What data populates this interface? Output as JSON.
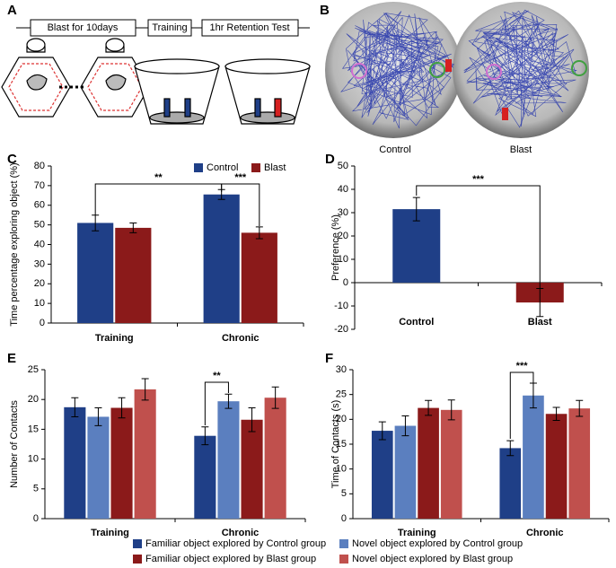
{
  "panel_a": {
    "label": "A",
    "steps": [
      "Blast for 10days",
      "Training",
      "1hr Retention Test"
    ]
  },
  "panel_b": {
    "label": "B",
    "labels": [
      "Control",
      "Blast"
    ]
  },
  "chart_data": [
    {
      "type": "bar",
      "panel_label": "C",
      "ylabel": "Time percentage exploring object (%)",
      "categories": [
        "Training",
        "Chronic"
      ],
      "ylim": [
        0,
        80
      ],
      "yticks": [
        0,
        10,
        20,
        30,
        40,
        50,
        60,
        70,
        80
      ],
      "legend": "upper right",
      "annotations": [
        "**",
        "***"
      ],
      "series": [
        {
          "name": "Control",
          "color": "#1f3f87",
          "values": [
            51,
            65.5
          ],
          "errors": [
            4,
            2.5
          ]
        },
        {
          "name": "Blast",
          "color": "#8b1a1a",
          "values": [
            48.5,
            46
          ],
          "errors": [
            2.5,
            3
          ]
        }
      ]
    },
    {
      "type": "bar",
      "panel_label": "D",
      "ylabel": "Preference (%)",
      "categories": [
        "Control",
        "Blast"
      ],
      "ylim": [
        -20,
        50
      ],
      "yticks": [
        -20,
        -10,
        0,
        10,
        20,
        30,
        40,
        50
      ],
      "annotations": [
        "***"
      ],
      "series": [
        {
          "colors": [
            "#1f3f87",
            "#8b1a1a"
          ],
          "values": [
            31.5,
            -8.5
          ],
          "errors": [
            5,
            6
          ]
        }
      ]
    },
    {
      "type": "bar",
      "panel_label": "E",
      "ylabel": "Number of Contacts",
      "categories": [
        "Training",
        "Chronic"
      ],
      "ylim": [
        0,
        25
      ],
      "yticks": [
        0,
        5,
        10,
        15,
        20,
        25
      ],
      "legend": "bottom",
      "annotations": [
        "**"
      ],
      "series": [
        {
          "name": "Familiar object explored by Control group",
          "color": "#1f3f87",
          "values": [
            18.7,
            13.9
          ],
          "errors": [
            1.6,
            1.5
          ]
        },
        {
          "name": "Novel object explored by Control group",
          "color": "#5b7fbf",
          "values": [
            17.1,
            19.7
          ],
          "errors": [
            1.5,
            1.2
          ]
        },
        {
          "name": "Familiar object explored by Blast group",
          "color": "#8b1a1a",
          "values": [
            18.6,
            16.6
          ],
          "errors": [
            1.7,
            2
          ]
        },
        {
          "name": "Novel object explored by Blast group",
          "color": "#c0504d",
          "values": [
            21.7,
            20.3
          ],
          "errors": [
            1.8,
            1.8
          ]
        }
      ]
    },
    {
      "type": "bar",
      "panel_label": "F",
      "ylabel": "Time of Contacts (s)",
      "categories": [
        "Training",
        "Chronic"
      ],
      "ylim": [
        0,
        30
      ],
      "yticks": [
        0,
        5,
        10,
        15,
        20,
        25,
        30
      ],
      "annotations": [
        "***"
      ],
      "series": [
        {
          "color": "#1f3f87",
          "values": [
            17.7,
            14.2
          ],
          "errors": [
            1.8,
            1.5
          ]
        },
        {
          "color": "#5b7fbf",
          "values": [
            18.7,
            24.8
          ],
          "errors": [
            2,
            2.5
          ]
        },
        {
          "color": "#8b1a1a",
          "values": [
            22.3,
            21.1
          ],
          "errors": [
            1.5,
            1.3
          ]
        },
        {
          "color": "#c0504d",
          "values": [
            21.9,
            22.2
          ],
          "errors": [
            2,
            1.6
          ]
        }
      ]
    }
  ]
}
